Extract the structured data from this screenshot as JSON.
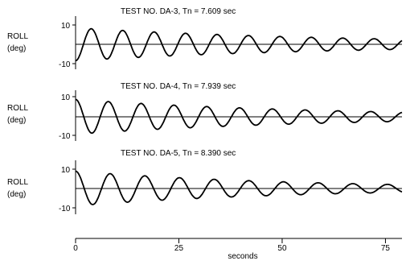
{
  "chart_data": [
    {
      "type": "line",
      "title": "TEST NO. DA-3,  Tn = 7.609 sec",
      "ylabel_line1": "ROLL",
      "ylabel_line2": "(deg)",
      "yticks": [
        "10",
        "-10"
      ],
      "ylim": [
        -10,
        10
      ],
      "xlim": [
        0,
        79
      ],
      "period_s": 7.609,
      "amplitude_start_deg": 8.5,
      "amplitude_end_deg": 2.6,
      "phase_deg": -90
    },
    {
      "type": "line",
      "title": "TEST NO. DA-4,  Tn = 7.939 sec",
      "ylabel_line1": "ROLL",
      "ylabel_line2": "(deg)",
      "yticks": [
        "10",
        "-10"
      ],
      "ylim": [
        -10,
        10
      ],
      "xlim": [
        0,
        79
      ],
      "period_s": 7.939,
      "amplitude_start_deg": 9.0,
      "amplitude_end_deg": 2.4,
      "phase_deg": 90
    },
    {
      "type": "line",
      "title": "TEST NO. DA-5,  Tn = 8.390 sec",
      "ylabel_line1": "ROLL",
      "ylabel_line2": "(deg)",
      "yticks": [
        "10",
        "-10"
      ],
      "ylim": [
        -10,
        10
      ],
      "xlim": [
        0,
        79
      ],
      "period_s": 8.39,
      "amplitude_start_deg": 9.0,
      "amplitude_end_deg": 2.0,
      "phase_deg": 90
    }
  ],
  "x_axis": {
    "xlabel": "seconds",
    "ticks": [
      0,
      25,
      50,
      75
    ],
    "xlim": [
      0,
      79
    ]
  }
}
